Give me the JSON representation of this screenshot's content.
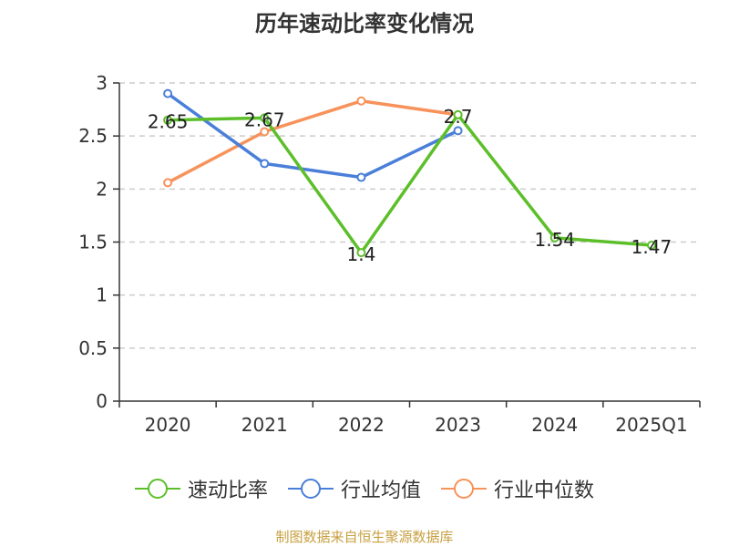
{
  "title": "历年速动比率变化情况",
  "source": "制图数据来自恒生聚源数据库",
  "colors": {
    "green": "#5cbf2a",
    "blue": "#4a7fd9",
    "orange": "#f7925a",
    "axis": "#333333",
    "grid": "#cccccc"
  },
  "chart_data": {
    "type": "line",
    "title": "历年速动比率变化情况",
    "categories": [
      "2020",
      "2021",
      "2022",
      "2023",
      "2024",
      "2025Q1"
    ],
    "ylim": [
      0,
      3
    ],
    "yticks": [
      0,
      0.5,
      1,
      1.5,
      2,
      2.5,
      3
    ],
    "ytick_labels": [
      "0",
      "0.5",
      "1",
      "1.5",
      "2",
      "2.5",
      "3"
    ],
    "grid": true,
    "legend_position": "bottom",
    "series": [
      {
        "name": "速动比率",
        "color": "#5cbf2a",
        "values": [
          2.65,
          2.67,
          1.4,
          2.7,
          1.54,
          1.47
        ],
        "labels": [
          "2.65",
          "2.67",
          "1.4",
          "2.7",
          "1.54",
          "1.47"
        ]
      },
      {
        "name": "行业均值",
        "color": "#4a7fd9",
        "values": [
          2.9,
          2.24,
          2.11,
          2.55,
          null,
          null
        ]
      },
      {
        "name": "行业中位数",
        "color": "#f7925a",
        "values": [
          2.06,
          2.54,
          2.83,
          2.7,
          null,
          null
        ]
      }
    ]
  }
}
